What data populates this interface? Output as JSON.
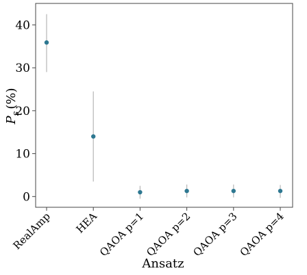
{
  "chart_data": {
    "type": "scatter",
    "title": "",
    "xlabel": "Ansatz",
    "ylabel_main": "P",
    "ylabel_sub": "s",
    "ylabel_unit": "(%)",
    "categories": [
      "RealAmp",
      "HEA",
      "QAOA p=1",
      "QAOA p=2",
      "QAOA p=3",
      "QAOA p=4"
    ],
    "series": [
      {
        "values": [
          35.9,
          14.0,
          1.0,
          1.3,
          1.3,
          1.3
        ],
        "err_low": [
          29.0,
          3.5,
          -0.5,
          -0.2,
          -0.2,
          -0.3
        ],
        "err_high": [
          42.5,
          24.5,
          2.5,
          2.8,
          2.8,
          2.7
        ]
      }
    ],
    "yticks": [
      0,
      10,
      20,
      30,
      40
    ],
    "ylim": [
      -2.5,
      45
    ],
    "grid": false,
    "colors": {
      "point": "#2e7891",
      "errbar": "#b5b5b5"
    }
  }
}
